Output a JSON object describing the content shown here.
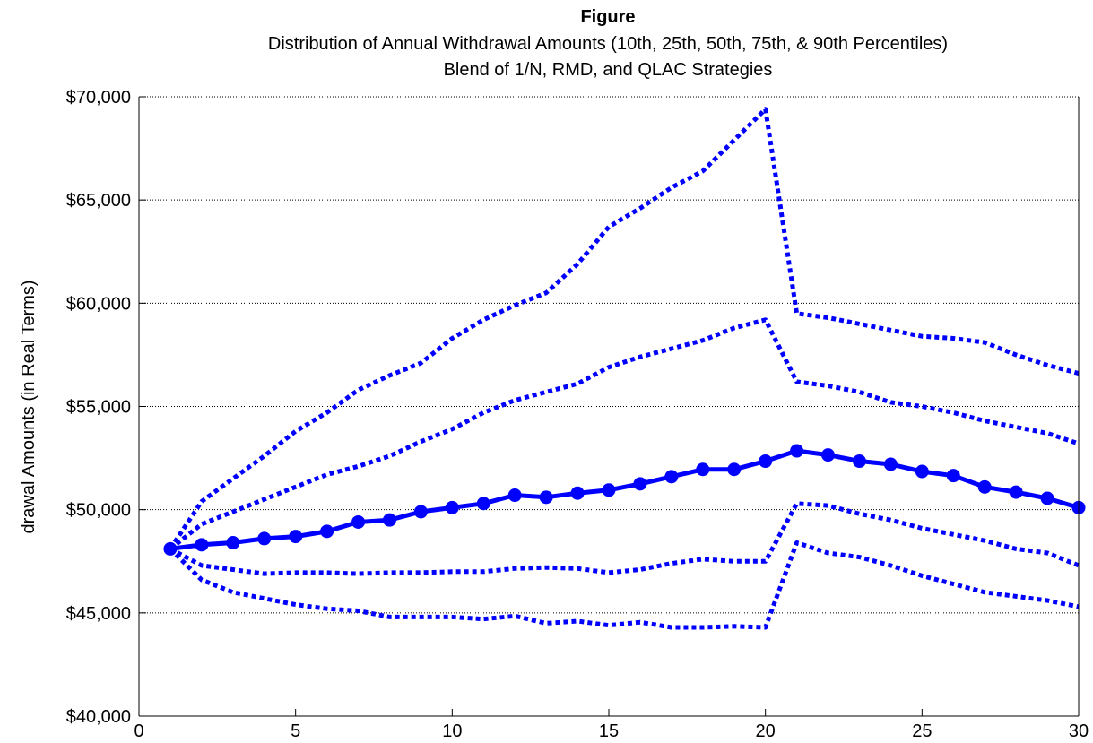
{
  "chart_data": {
    "type": "line",
    "title": "Figure",
    "subtitle_lines": [
      "Distribution of Annual Withdrawal Amounts (10th, 25th, 50th, 75th, & 90th Percentiles)",
      "Blend of 1/N, RMD, and QLAC Strategies"
    ],
    "xlabel": "",
    "ylabel": "drawal Amounts (in Real Terms)",
    "xlim": [
      0,
      30
    ],
    "ylim": [
      40000,
      70000
    ],
    "x_ticks": [
      0,
      5,
      10,
      15,
      20,
      25,
      30
    ],
    "x_tick_labels": [
      "0",
      "5",
      "10",
      "15",
      "20",
      "25",
      "30"
    ],
    "y_ticks": [
      40000,
      45000,
      50000,
      55000,
      60000,
      65000,
      70000
    ],
    "y_tick_labels": [
      "$40,000",
      "$45,000",
      "$50,000",
      "$55,000",
      "$60,000",
      "$65,000",
      "$70,000"
    ],
    "grid": "horizontal dotted",
    "line_color": "#0000ff",
    "x": [
      1,
      2,
      3,
      4,
      5,
      6,
      7,
      8,
      9,
      10,
      11,
      12,
      13,
      14,
      15,
      16,
      17,
      18,
      19,
      20,
      21,
      22,
      23,
      24,
      25,
      26,
      27,
      28,
      29,
      30
    ],
    "series": [
      {
        "percentile": "90th",
        "style": "dotted",
        "values": [
          48100,
          50400,
          51500,
          52600,
          53800,
          54700,
          55800,
          56500,
          57100,
          58300,
          59200,
          59900,
          60500,
          61900,
          63700,
          64600,
          65600,
          66400,
          67900,
          69400,
          59500,
          59300,
          59000,
          58700,
          58400,
          58300,
          58100,
          57500,
          57000,
          56600
        ]
      },
      {
        "percentile": "75th",
        "style": "dotted",
        "values": [
          48100,
          49300,
          49900,
          50500,
          51100,
          51700,
          52100,
          52600,
          53300,
          53900,
          54700,
          55300,
          55700,
          56100,
          56900,
          57400,
          57800,
          58200,
          58800,
          59200,
          56200,
          56000,
          55700,
          55200,
          55000,
          54700,
          54300,
          54000,
          53700,
          53200
        ]
      },
      {
        "percentile": "50th",
        "style": "solid-markers",
        "values": [
          48100,
          48300,
          48400,
          48600,
          48700,
          48950,
          49400,
          49500,
          49900,
          50100,
          50300,
          50700,
          50600,
          50800,
          50950,
          51250,
          51600,
          51950,
          51950,
          52350,
          52850,
          52650,
          52350,
          52200,
          51850,
          51650,
          51100,
          50850,
          50550,
          50100
        ]
      },
      {
        "percentile": "25th",
        "style": "dotted",
        "values": [
          48100,
          47300,
          47100,
          46900,
          46950,
          46950,
          46900,
          46950,
          46950,
          47000,
          47000,
          47150,
          47200,
          47150,
          46950,
          47100,
          47400,
          47600,
          47500,
          47500,
          50300,
          50200,
          49800,
          49500,
          49100,
          48800,
          48500,
          48100,
          47900,
          47300
        ]
      },
      {
        "percentile": "10th",
        "style": "dotted",
        "values": [
          48100,
          46600,
          46000,
          45700,
          45400,
          45200,
          45100,
          44800,
          44800,
          44800,
          44700,
          44850,
          44500,
          44600,
          44400,
          44550,
          44300,
          44300,
          44350,
          44300,
          48400,
          47900,
          47700,
          47300,
          46800,
          46400,
          46000,
          45800,
          45600,
          45300
        ]
      }
    ]
  }
}
